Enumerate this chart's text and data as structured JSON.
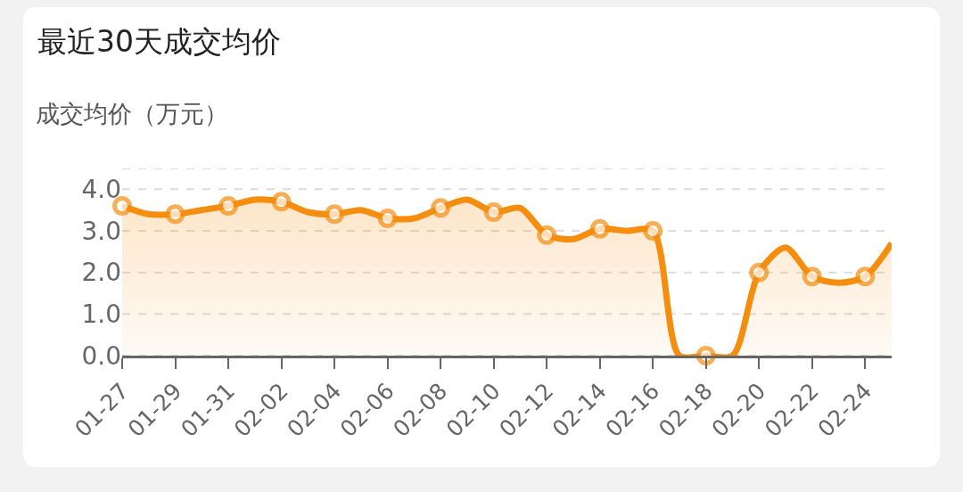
{
  "chart_data": {
    "type": "area",
    "title": "最近30天成交均价",
    "ylabel": "成交均价（万元）",
    "categories": [
      "01-27",
      null,
      "01-29",
      null,
      "01-31",
      null,
      "02-02",
      null,
      "02-04",
      null,
      "02-06",
      null,
      "02-08",
      null,
      "02-10",
      null,
      "02-12",
      null,
      "02-14",
      null,
      "02-16",
      null,
      "02-18",
      null,
      "02-20",
      null,
      "02-22",
      null,
      "02-24",
      null
    ],
    "series": [
      {
        "color": "#f58d0f",
        "values": [
          3.6,
          3.4,
          3.4,
          3.5,
          3.6,
          3.75,
          3.7,
          3.45,
          3.4,
          3.5,
          3.3,
          3.3,
          3.55,
          3.75,
          3.45,
          3.55,
          2.9,
          2.8,
          3.05,
          3.0,
          3.0,
          0,
          0,
          0,
          2.0,
          2.6,
          1.9,
          1.75,
          1.9,
          2.7
        ]
      }
    ],
    "ylim": [
      0,
      4.5
    ],
    "yticks": [
      {
        "value": 0,
        "label": "0.0"
      },
      {
        "value": 1,
        "label": "1.0"
      },
      {
        "value": 2,
        "label": "2.0"
      },
      {
        "value": 3,
        "label": "3.0"
      },
      {
        "value": 4,
        "label": "4.0"
      },
      {
        "value": 4.5,
        "label": null
      }
    ],
    "grid": "y",
    "marker": "circle",
    "line_style": "solid"
  }
}
